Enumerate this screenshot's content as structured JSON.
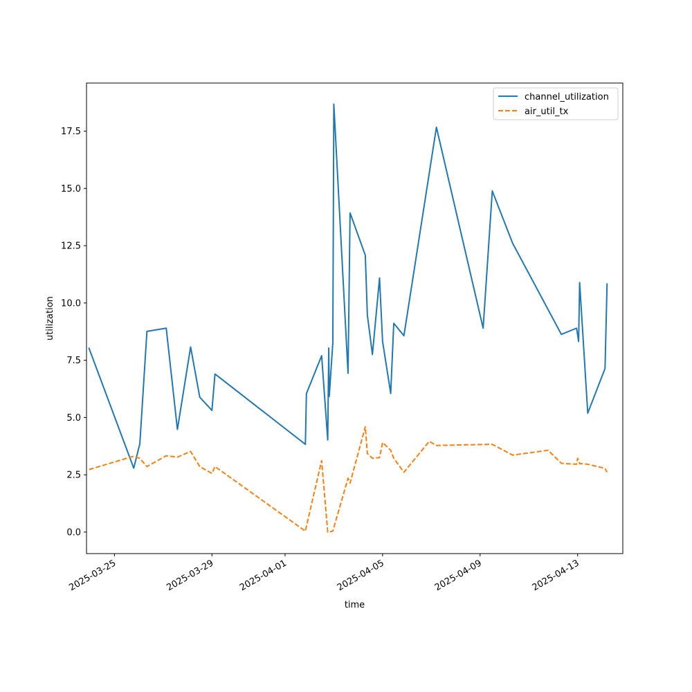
{
  "chart_data": {
    "type": "line",
    "title": "",
    "xlabel": "time",
    "ylabel": "utilization",
    "xlim": [
      "2025-03-23T20:30",
      "2025-04-14T20:30"
    ],
    "ylim": [
      -0.94,
      19.6
    ],
    "x_ticks": [
      "2025-03-25",
      "2025-03-29",
      "2025-04-01",
      "2025-04-05",
      "2025-04-09",
      "2025-04-13"
    ],
    "y_ticks": [
      "0.0",
      "2.5",
      "5.0",
      "7.5",
      "10.0",
      "12.5",
      "15.0",
      "17.5"
    ],
    "grid": false,
    "legend_position": "top-right",
    "series": [
      {
        "name": "channel_utilization",
        "color": "#1f77b4",
        "dash": "solid",
        "points": [
          [
            "2025-03-23T23:00",
            8.02
          ],
          [
            "2025-03-25T19:00",
            2.79
          ],
          [
            "2025-03-26T01:00",
            3.85
          ],
          [
            "2025-03-26T08:00",
            8.76
          ],
          [
            "2025-03-27T03:00",
            8.9
          ],
          [
            "2025-03-27T14:00",
            4.48
          ],
          [
            "2025-03-28T03:00",
            8.08
          ],
          [
            "2025-03-28T12:00",
            5.89
          ],
          [
            "2025-03-29T00:00",
            5.31
          ],
          [
            "2025-03-29T03:00",
            6.9
          ],
          [
            "2025-04-01T20:00",
            3.83
          ],
          [
            "2025-04-01T21:00",
            6.04
          ],
          [
            "2025-04-02T12:00",
            7.7
          ],
          [
            "2025-04-02T18:00",
            4.02
          ],
          [
            "2025-04-02T19:00",
            8.03
          ],
          [
            "2025-04-02T19:30",
            5.92
          ],
          [
            "2025-04-02T23:00",
            8.25
          ],
          [
            "2025-04-03T00:00",
            18.68
          ],
          [
            "2025-04-03T14:00",
            6.93
          ],
          [
            "2025-04-03T16:00",
            13.93
          ],
          [
            "2025-04-04T07:00",
            12.08
          ],
          [
            "2025-04-04T09:00",
            9.48
          ],
          [
            "2025-04-04T14:00",
            7.75
          ],
          [
            "2025-04-04T21:00",
            11.09
          ],
          [
            "2025-04-05T00:00",
            8.32
          ],
          [
            "2025-04-05T08:00",
            6.05
          ],
          [
            "2025-04-05T11:00",
            9.11
          ],
          [
            "2025-04-05T21:00",
            8.57
          ],
          [
            "2025-04-07T05:00",
            17.67
          ],
          [
            "2025-04-09T03:00",
            8.9
          ],
          [
            "2025-04-09T12:00",
            14.89
          ],
          [
            "2025-04-10T08:00",
            12.61
          ],
          [
            "2025-04-12T08:00",
            8.63
          ],
          [
            "2025-04-12T23:00",
            8.9
          ],
          [
            "2025-04-13T01:00",
            8.32
          ],
          [
            "2025-04-13T02:00",
            10.89
          ],
          [
            "2025-04-13T10:00",
            5.19
          ],
          [
            "2025-04-14T03:00",
            7.14
          ],
          [
            "2025-04-14T05:00",
            10.83
          ]
        ]
      },
      {
        "name": "air_util_tx",
        "color": "#ff7f0e",
        "dash": "dashed",
        "points": [
          [
            "2025-03-23T23:00",
            2.73
          ],
          [
            "2025-03-25T19:00",
            3.31
          ],
          [
            "2025-03-26T01:00",
            3.22
          ],
          [
            "2025-03-26T08:00",
            2.86
          ],
          [
            "2025-03-27T03:00",
            3.33
          ],
          [
            "2025-03-27T14:00",
            3.27
          ],
          [
            "2025-03-28T03:00",
            3.52
          ],
          [
            "2025-03-28T12:00",
            2.86
          ],
          [
            "2025-03-29T00:00",
            2.56
          ],
          [
            "2025-03-29T03:00",
            2.86
          ],
          [
            "2025-04-01T20:00",
            0.04
          ],
          [
            "2025-04-01T21:00",
            0.25
          ],
          [
            "2025-04-02T12:00",
            3.12
          ],
          [
            "2025-04-02T18:00",
            0.0
          ],
          [
            "2025-04-02T23:00",
            0.04
          ],
          [
            "2025-04-03T14:00",
            2.35
          ],
          [
            "2025-04-03T16:00",
            2.14
          ],
          [
            "2025-04-04T07:00",
            4.6
          ],
          [
            "2025-04-04T09:00",
            3.43
          ],
          [
            "2025-04-04T14:00",
            3.22
          ],
          [
            "2025-04-04T21:00",
            3.25
          ],
          [
            "2025-04-05T00:00",
            3.91
          ],
          [
            "2025-04-05T08:00",
            3.57
          ],
          [
            "2025-04-05T11:00",
            3.22
          ],
          [
            "2025-04-05T21:00",
            2.61
          ],
          [
            "2025-04-06T22:00",
            3.96
          ],
          [
            "2025-04-07T05:00",
            3.78
          ],
          [
            "2025-04-09T12:00",
            3.83
          ],
          [
            "2025-04-10T08:00",
            3.36
          ],
          [
            "2025-04-11T19:00",
            3.57
          ],
          [
            "2025-04-12T08:00",
            3.0
          ],
          [
            "2025-04-12T23:00",
            2.96
          ],
          [
            "2025-04-13T00:00",
            3.22
          ],
          [
            "2025-04-13T02:00",
            2.99
          ],
          [
            "2025-04-13T10:00",
            2.96
          ],
          [
            "2025-04-14T03:00",
            2.78
          ],
          [
            "2025-04-14T05:00",
            2.61
          ]
        ]
      }
    ]
  }
}
